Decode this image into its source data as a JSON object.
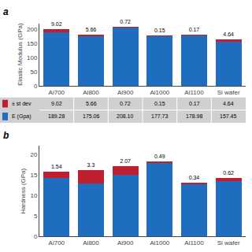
{
  "chart_data": [
    {
      "type": "bar",
      "stacked": true,
      "categories": [
        "Al700",
        "Al800",
        "Al900",
        "Al1000",
        "Al1100",
        "Si wafer"
      ],
      "series": [
        {
          "color": "#1f6dbf",
          "values": [
            189.28,
            175.06,
            208.1,
            177.73,
            178.98,
            157.45
          ]
        },
        {
          "color": "#bf1f2f",
          "values": [
            9.02,
            5.66,
            0.72,
            0.15,
            0.17,
            4.64
          ],
          "data_labels": true
        }
      ],
      "ylabel": "Elastic Modulus (GPa)",
      "ylim": [
        0,
        220
      ],
      "yticks": [
        0,
        50,
        100,
        150,
        200
      ],
      "grid": false,
      "annotations": [
        {
          "text": "a"
        }
      ]
    },
    {
      "type": "table",
      "series": [
        {
          "name": "± st dev",
          "color": "#bf1f2f",
          "values": [
            9.02,
            5.66,
            0.72,
            0.15,
            0.17,
            4.64
          ],
          "value_labels": [
            "9.02",
            "5.66",
            "0.72",
            "0.15",
            "0.17",
            "4.64"
          ]
        },
        {
          "name": "E (Gpa)",
          "color": "#1f6dbf",
          "values": [
            189.28,
            175.06,
            208.1,
            177.73,
            178.98,
            157.45
          ],
          "value_labels": [
            "189.28",
            "175.06",
            "208.10",
            "177.73",
            "178.98",
            "157.45"
          ]
        }
      ]
    },
    {
      "type": "bar",
      "stacked": true,
      "categories": [
        "Al700",
        "Al800",
        "Al900",
        "Al1000",
        "Al1100",
        "Si wafer"
      ],
      "series": [
        {
          "color": "#1f6dbf",
          "values": [
            14.2,
            12.9,
            15.0,
            17.8,
            12.7,
            13.5
          ]
        },
        {
          "color": "#bf1f2f",
          "values": [
            1.54,
            3.3,
            2.07,
            0.49,
            0.34,
            0.62
          ],
          "data_labels": true
        }
      ],
      "ylabel": "Hardness (GPa)",
      "ylim": [
        0,
        22
      ],
      "yticks": [
        0,
        5,
        10,
        15,
        20
      ],
      "grid": false,
      "annotations": [
        {
          "text": "b"
        }
      ]
    }
  ]
}
